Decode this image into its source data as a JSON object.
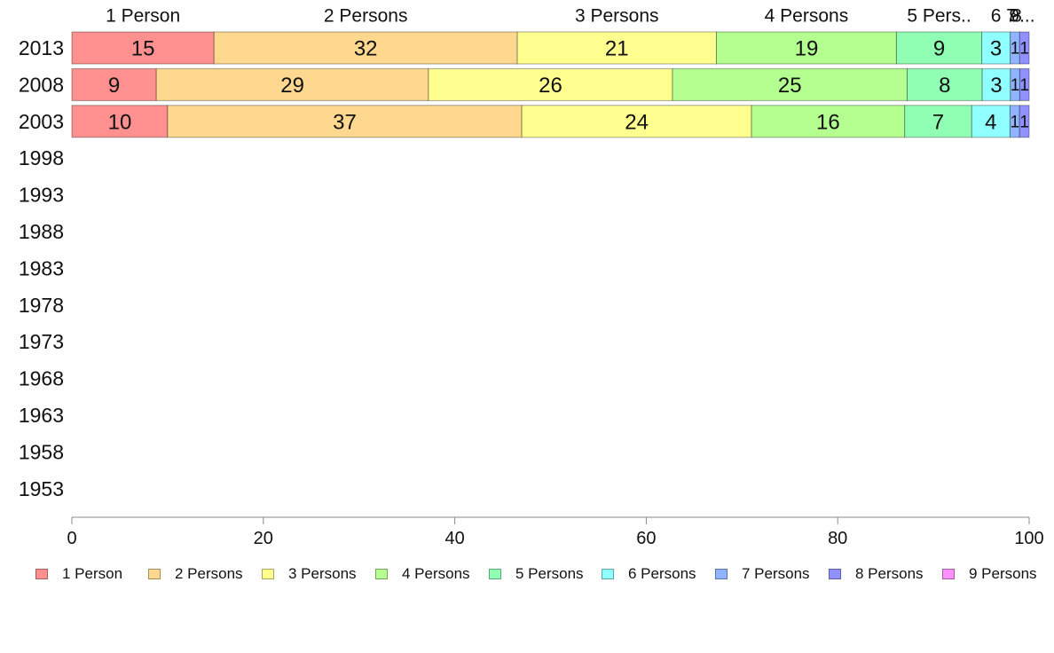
{
  "chart_data": {
    "type": "bar",
    "orientation": "horizontal",
    "stacked": true,
    "categories": [
      "2013",
      "2008",
      "2003",
      "1998",
      "1993",
      "1988",
      "1983",
      "1978",
      "1973",
      "1968",
      "1963",
      "1958",
      "1953"
    ],
    "series": [
      {
        "name": "1 Person",
        "color": "#ff9090",
        "values": [
          15,
          9,
          10,
          null,
          null,
          null,
          null,
          null,
          null,
          null,
          null,
          null,
          null
        ]
      },
      {
        "name": "2 Persons",
        "color": "#ffd890",
        "values": [
          32,
          29,
          37,
          null,
          null,
          null,
          null,
          null,
          null,
          null,
          null,
          null,
          null
        ]
      },
      {
        "name": "3 Persons",
        "color": "#ffff90",
        "values": [
          21,
          26,
          24,
          null,
          null,
          null,
          null,
          null,
          null,
          null,
          null,
          null,
          null
        ]
      },
      {
        "name": "4 Persons",
        "color": "#b4ff90",
        "values": [
          19,
          25,
          16,
          null,
          null,
          null,
          null,
          null,
          null,
          null,
          null,
          null,
          null
        ]
      },
      {
        "name": "5 Persons",
        "color": "#90ffb4",
        "values": [
          9,
          8,
          7,
          null,
          null,
          null,
          null,
          null,
          null,
          null,
          null,
          null,
          null
        ]
      },
      {
        "name": "6 Persons",
        "color": "#90ffff",
        "values": [
          3,
          3,
          4,
          null,
          null,
          null,
          null,
          null,
          null,
          null,
          null,
          null,
          null
        ]
      },
      {
        "name": "7 Persons",
        "color": "#90b4ff",
        "values": [
          1,
          1,
          1,
          null,
          null,
          null,
          null,
          null,
          null,
          null,
          null,
          null,
          null
        ]
      },
      {
        "name": "8 Persons",
        "color": "#9090ff",
        "values": [
          1,
          1,
          1,
          null,
          null,
          null,
          null,
          null,
          null,
          null,
          null,
          null,
          null
        ]
      },
      {
        "name": "9 Persons",
        "color": "#ff90ff",
        "values": [
          0,
          0,
          0,
          null,
          null,
          null,
          null,
          null,
          null,
          null,
          null,
          null,
          null
        ]
      }
    ],
    "top_labels": [
      "1 Person",
      "2 Persons",
      "3 Persons",
      "4 Persons",
      "5 Pers..",
      "6",
      "7",
      "8",
      "9..."
    ],
    "xlim": [
      0,
      100
    ],
    "xticks": [
      0,
      20,
      40,
      60,
      80,
      100
    ],
    "title": "",
    "xlabel": "",
    "ylabel": "",
    "grid": false,
    "legend_position": "bottom"
  }
}
